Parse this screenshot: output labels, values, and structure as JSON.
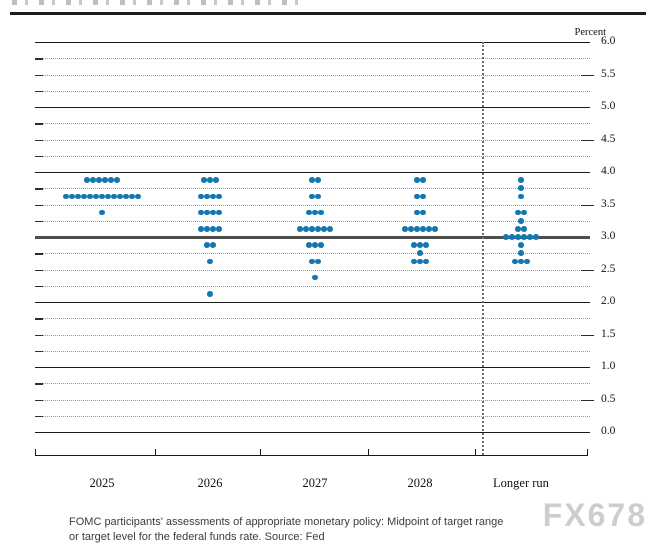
{
  "chart_data": {
    "type": "scatter",
    "subtype": "fomc-dot-plot",
    "unit_label": "Percent",
    "ylim": [
      0.0,
      6.0
    ],
    "y_tick_step": 0.5,
    "y_minor_step": 0.25,
    "y_tick_labels": [
      "6.0",
      "5.5",
      "5.0",
      "4.5",
      "4.0",
      "3.5",
      "3.0",
      "2.5",
      "2.0",
      "1.5",
      "1.0",
      "0.5",
      "0.0"
    ],
    "grid": "solid lines at integers, dotted at quarter points, emphasized line at 3.0",
    "categories": [
      "2025",
      "2026",
      "2027",
      "2028",
      "Longer run"
    ],
    "separator_before_category": "Longer run",
    "dot_color": "#1477b0",
    "columns": [
      {
        "label": "2025",
        "dots": [
          {
            "rate": 3.875,
            "count": 6
          },
          {
            "rate": 3.625,
            "count": 13
          },
          {
            "rate": 3.375,
            "count": 1
          }
        ]
      },
      {
        "label": "2026",
        "dots": [
          {
            "rate": 3.875,
            "count": 3
          },
          {
            "rate": 3.625,
            "count": 4
          },
          {
            "rate": 3.375,
            "count": 4
          },
          {
            "rate": 3.125,
            "count": 4
          },
          {
            "rate": 2.875,
            "count": 2
          },
          {
            "rate": 2.625,
            "count": 1
          },
          {
            "rate": 2.125,
            "count": 1
          }
        ]
      },
      {
        "label": "2027",
        "dots": [
          {
            "rate": 3.875,
            "count": 2
          },
          {
            "rate": 3.625,
            "count": 2
          },
          {
            "rate": 3.375,
            "count": 3
          },
          {
            "rate": 3.125,
            "count": 6
          },
          {
            "rate": 2.875,
            "count": 3
          },
          {
            "rate": 2.625,
            "count": 2
          },
          {
            "rate": 2.375,
            "count": 1
          }
        ]
      },
      {
        "label": "2028",
        "dots": [
          {
            "rate": 3.875,
            "count": 2
          },
          {
            "rate": 3.625,
            "count": 2
          },
          {
            "rate": 3.375,
            "count": 2
          },
          {
            "rate": 3.125,
            "count": 6
          },
          {
            "rate": 2.875,
            "count": 3
          },
          {
            "rate": 2.75,
            "count": 1
          },
          {
            "rate": 2.625,
            "count": 3
          }
        ]
      },
      {
        "label": "Longer run",
        "dots": [
          {
            "rate": 3.875,
            "count": 1
          },
          {
            "rate": 3.75,
            "count": 1
          },
          {
            "rate": 3.625,
            "count": 1
          },
          {
            "rate": 3.375,
            "count": 2
          },
          {
            "rate": 3.25,
            "count": 1
          },
          {
            "rate": 3.125,
            "count": 2
          },
          {
            "rate": 3.0,
            "count": 6
          },
          {
            "rate": 2.875,
            "count": 1
          },
          {
            "rate": 2.75,
            "count": 1
          },
          {
            "rate": 2.625,
            "count": 3
          }
        ]
      }
    ],
    "caption_line1": "FOMC participants' assessments of appropriate monetary policy: Midpoint of target range",
    "caption_line2": "or target level for the federal funds rate. Source: Fed",
    "watermark": "FX678"
  }
}
